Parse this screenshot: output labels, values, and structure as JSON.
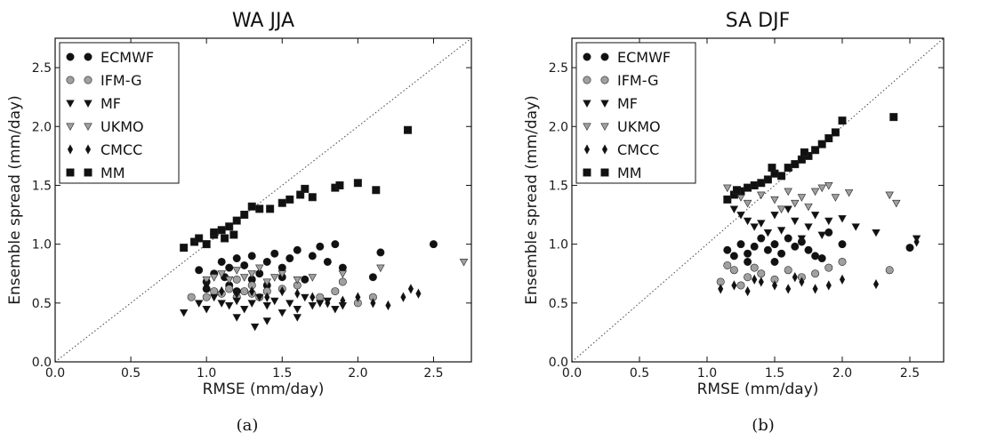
{
  "figure": {
    "captions": [
      "(a)",
      "(b)"
    ]
  },
  "chart_data": [
    {
      "type": "scatter",
      "title": "WA JJA",
      "xlabel": "RMSE (mm/day)",
      "ylabel": "Ensemble spread (mm/day)",
      "xlim": [
        0,
        2.75
      ],
      "ylim": [
        0,
        2.75
      ],
      "xticks": [
        "0.0",
        "0.5",
        "1.0",
        "1.5",
        "2.0",
        "2.5"
      ],
      "yticks": [
        "0.0",
        "0.5",
        "1.0",
        "1.5",
        "2.0",
        "2.5"
      ],
      "grid": false,
      "legend_position": "top-left",
      "reference_line": "y = x (dotted)",
      "series": [
        {
          "name": "ECMWF",
          "marker": "circle",
          "color": "#111111",
          "points": [
            [
              0.95,
              0.78
            ],
            [
              1.0,
              0.68
            ],
            [
              1.05,
              0.75
            ],
            [
              1.1,
              0.85
            ],
            [
              1.12,
              0.72
            ],
            [
              1.15,
              0.8
            ],
            [
              1.2,
              0.88
            ],
            [
              1.25,
              0.82
            ],
            [
              1.3,
              0.9
            ],
            [
              1.35,
              0.75
            ],
            [
              1.4,
              0.85
            ],
            [
              1.45,
              0.92
            ],
            [
              1.5,
              0.8
            ],
            [
              1.55,
              0.88
            ],
            [
              1.6,
              0.95
            ],
            [
              1.7,
              0.9
            ],
            [
              1.75,
              0.98
            ],
            [
              1.8,
              0.85
            ],
            [
              1.85,
              1.0
            ],
            [
              1.9,
              0.8
            ],
            [
              2.1,
              0.72
            ],
            [
              2.15,
              0.93
            ],
            [
              2.5,
              1.0
            ],
            [
              1.0,
              0.62
            ],
            [
              1.2,
              0.6
            ],
            [
              1.4,
              0.65
            ],
            [
              1.65,
              0.7
            ],
            [
              1.3,
              0.7
            ],
            [
              1.5,
              0.72
            ],
            [
              1.15,
              0.65
            ]
          ]
        },
        {
          "name": "IFM-G",
          "marker": "circle",
          "color": "#a0a0a0",
          "points": [
            [
              0.9,
              0.55
            ],
            [
              1.0,
              0.55
            ],
            [
              1.05,
              0.6
            ],
            [
              1.1,
              0.58
            ],
            [
              1.15,
              0.62
            ],
            [
              1.2,
              0.55
            ],
            [
              1.25,
              0.6
            ],
            [
              1.3,
              0.58
            ],
            [
              1.35,
              0.55
            ],
            [
              1.4,
              0.6
            ],
            [
              1.5,
              0.62
            ],
            [
              1.6,
              0.65
            ],
            [
              1.75,
              0.55
            ],
            [
              1.85,
              0.6
            ],
            [
              1.9,
              0.68
            ],
            [
              2.0,
              0.5
            ],
            [
              2.1,
              0.55
            ],
            [
              1.3,
              0.65
            ],
            [
              1.2,
              0.7
            ]
          ]
        },
        {
          "name": "MF",
          "marker": "triangle-down",
          "color": "#111111",
          "points": [
            [
              0.85,
              0.42
            ],
            [
              0.95,
              0.5
            ],
            [
              1.0,
              0.45
            ],
            [
              1.05,
              0.55
            ],
            [
              1.1,
              0.5
            ],
            [
              1.15,
              0.48
            ],
            [
              1.2,
              0.52
            ],
            [
              1.25,
              0.45
            ],
            [
              1.3,
              0.5
            ],
            [
              1.32,
              0.3
            ],
            [
              1.35,
              0.55
            ],
            [
              1.4,
              0.48
            ],
            [
              1.45,
              0.52
            ],
            [
              1.5,
              0.42
            ],
            [
              1.55,
              0.5
            ],
            [
              1.6,
              0.45
            ],
            [
              1.65,
              0.55
            ],
            [
              1.7,
              0.48
            ],
            [
              1.75,
              0.5
            ],
            [
              1.8,
              0.52
            ],
            [
              1.85,
              0.45
            ],
            [
              1.9,
              0.48
            ],
            [
              1.2,
              0.38
            ],
            [
              1.4,
              0.35
            ],
            [
              1.6,
              0.38
            ]
          ]
        },
        {
          "name": "UKMO",
          "marker": "triangle-down",
          "color": "#a0a0a0",
          "points": [
            [
              1.0,
              0.7
            ],
            [
              1.05,
              0.72
            ],
            [
              1.1,
              0.75
            ],
            [
              1.15,
              0.7
            ],
            [
              1.2,
              0.78
            ],
            [
              1.25,
              0.72
            ],
            [
              1.3,
              0.75
            ],
            [
              1.35,
              0.8
            ],
            [
              1.4,
              0.68
            ],
            [
              1.45,
              0.72
            ],
            [
              1.5,
              0.75
            ],
            [
              1.6,
              0.7
            ],
            [
              1.7,
              0.72
            ],
            [
              1.9,
              0.75
            ],
            [
              2.15,
              0.8
            ],
            [
              2.7,
              0.85
            ]
          ]
        },
        {
          "name": "CMCC",
          "marker": "diamond",
          "color": "#111111",
          "points": [
            [
              1.0,
              0.65
            ],
            [
              1.1,
              0.6
            ],
            [
              1.2,
              0.58
            ],
            [
              1.3,
              0.6
            ],
            [
              1.4,
              0.55
            ],
            [
              1.5,
              0.6
            ],
            [
              1.6,
              0.58
            ],
            [
              1.7,
              0.55
            ],
            [
              1.8,
              0.5
            ],
            [
              1.9,
              0.52
            ],
            [
              2.0,
              0.55
            ],
            [
              2.1,
              0.5
            ],
            [
              2.2,
              0.48
            ],
            [
              2.3,
              0.55
            ],
            [
              2.35,
              0.62
            ],
            [
              2.4,
              0.58
            ]
          ]
        },
        {
          "name": "MM",
          "marker": "square",
          "color": "#111111",
          "points": [
            [
              0.85,
              0.97
            ],
            [
              0.92,
              1.02
            ],
            [
              0.95,
              1.05
            ],
            [
              1.0,
              1.0
            ],
            [
              1.05,
              1.08
            ],
            [
              1.1,
              1.12
            ],
            [
              1.12,
              1.05
            ],
            [
              1.15,
              1.15
            ],
            [
              1.2,
              1.2
            ],
            [
              1.25,
              1.25
            ],
            [
              1.3,
              1.32
            ],
            [
              1.35,
              1.3
            ],
            [
              1.42,
              1.3
            ],
            [
              1.5,
              1.35
            ],
            [
              1.55,
              1.38
            ],
            [
              1.62,
              1.42
            ],
            [
              1.65,
              1.47
            ],
            [
              1.7,
              1.4
            ],
            [
              1.85,
              1.48
            ],
            [
              1.88,
              1.5
            ],
            [
              2.0,
              1.52
            ],
            [
              2.12,
              1.46
            ],
            [
              2.33,
              1.97
            ],
            [
              1.05,
              1.1
            ],
            [
              1.18,
              1.08
            ]
          ]
        }
      ]
    },
    {
      "type": "scatter",
      "title": "SA DJF",
      "xlabel": "RMSE (mm/day)",
      "ylabel": "Ensemble spread (mm/day)",
      "xlim": [
        0,
        2.75
      ],
      "ylim": [
        0,
        2.75
      ],
      "xticks": [
        "0.0",
        "0.5",
        "1.0",
        "1.5",
        "2.0",
        "2.5"
      ],
      "yticks": [
        "0.0",
        "0.5",
        "1.0",
        "1.5",
        "2.0",
        "2.5"
      ],
      "grid": false,
      "legend_position": "top-left",
      "reference_line": "y = x (dotted)",
      "series": [
        {
          "name": "ECMWF",
          "marker": "circle",
          "color": "#111111",
          "points": [
            [
              1.15,
              0.95
            ],
            [
              1.2,
              0.9
            ],
            [
              1.25,
              1.0
            ],
            [
              1.3,
              0.92
            ],
            [
              1.35,
              0.98
            ],
            [
              1.4,
              1.05
            ],
            [
              1.45,
              0.95
            ],
            [
              1.5,
              1.0
            ],
            [
              1.55,
              0.92
            ],
            [
              1.6,
              1.05
            ],
            [
              1.65,
              0.98
            ],
            [
              1.7,
              1.02
            ],
            [
              1.75,
              0.95
            ],
            [
              1.8,
              0.9
            ],
            [
              1.85,
              0.88
            ],
            [
              1.9,
              1.1
            ],
            [
              2.0,
              1.0
            ],
            [
              2.5,
              0.97
            ],
            [
              1.3,
              0.85
            ],
            [
              1.5,
              0.85
            ]
          ]
        },
        {
          "name": "IFM-G",
          "marker": "circle",
          "color": "#a0a0a0",
          "points": [
            [
              1.1,
              0.68
            ],
            [
              1.15,
              0.82
            ],
            [
              1.2,
              0.78
            ],
            [
              1.3,
              0.72
            ],
            [
              1.35,
              0.8
            ],
            [
              1.4,
              0.75
            ],
            [
              1.5,
              0.7
            ],
            [
              1.6,
              0.78
            ],
            [
              1.7,
              0.72
            ],
            [
              1.8,
              0.75
            ],
            [
              1.9,
              0.8
            ],
            [
              2.0,
              0.85
            ],
            [
              2.35,
              0.78
            ],
            [
              1.25,
              0.65
            ]
          ]
        },
        {
          "name": "MF",
          "marker": "triangle-down",
          "color": "#111111",
          "points": [
            [
              1.2,
              1.3
            ],
            [
              1.25,
              1.25
            ],
            [
              1.3,
              1.2
            ],
            [
              1.35,
              1.15
            ],
            [
              1.4,
              1.18
            ],
            [
              1.5,
              1.25
            ],
            [
              1.6,
              1.3
            ],
            [
              1.65,
              1.2
            ],
            [
              1.75,
              1.15
            ],
            [
              1.8,
              1.25
            ],
            [
              1.9,
              1.2
            ],
            [
              2.0,
              1.22
            ],
            [
              2.1,
              1.15
            ],
            [
              2.25,
              1.1
            ],
            [
              2.55,
              1.05
            ],
            [
              1.45,
              1.1
            ],
            [
              1.55,
              1.12
            ],
            [
              1.7,
              1.05
            ],
            [
              1.85,
              1.08
            ]
          ]
        },
        {
          "name": "UKMO",
          "marker": "triangle-down",
          "color": "#a0a0a0",
          "points": [
            [
              1.15,
              1.48
            ],
            [
              1.25,
              1.4
            ],
            [
              1.3,
              1.35
            ],
            [
              1.4,
              1.42
            ],
            [
              1.5,
              1.38
            ],
            [
              1.6,
              1.45
            ],
            [
              1.7,
              1.4
            ],
            [
              1.8,
              1.45
            ],
            [
              1.85,
              1.48
            ],
            [
              1.9,
              1.5
            ],
            [
              1.95,
              1.4
            ],
            [
              2.05,
              1.44
            ],
            [
              2.35,
              1.42
            ],
            [
              2.4,
              1.35
            ],
            [
              1.55,
              1.3
            ],
            [
              1.75,
              1.32
            ],
            [
              1.65,
              1.35
            ]
          ]
        },
        {
          "name": "CMCC",
          "marker": "diamond",
          "color": "#111111",
          "points": [
            [
              1.1,
              0.62
            ],
            [
              1.2,
              0.65
            ],
            [
              1.3,
              0.6
            ],
            [
              1.4,
              0.68
            ],
            [
              1.5,
              0.65
            ],
            [
              1.6,
              0.62
            ],
            [
              1.7,
              0.68
            ],
            [
              1.8,
              0.62
            ],
            [
              1.9,
              0.65
            ],
            [
              2.0,
              0.7
            ],
            [
              2.25,
              0.66
            ],
            [
              2.55,
              1.02
            ],
            [
              1.35,
              0.7
            ],
            [
              1.65,
              0.72
            ]
          ]
        },
        {
          "name": "MM",
          "marker": "square",
          "color": "#111111",
          "points": [
            [
              1.15,
              1.38
            ],
            [
              1.2,
              1.42
            ],
            [
              1.25,
              1.45
            ],
            [
              1.3,
              1.48
            ],
            [
              1.35,
              1.5
            ],
            [
              1.4,
              1.52
            ],
            [
              1.45,
              1.55
            ],
            [
              1.5,
              1.6
            ],
            [
              1.55,
              1.58
            ],
            [
              1.6,
              1.65
            ],
            [
              1.65,
              1.68
            ],
            [
              1.7,
              1.72
            ],
            [
              1.75,
              1.75
            ],
            [
              1.8,
              1.8
            ],
            [
              1.85,
              1.85
            ],
            [
              1.9,
              1.9
            ],
            [
              1.95,
              1.95
            ],
            [
              2.0,
              2.05
            ],
            [
              2.38,
              2.08
            ],
            [
              1.22,
              1.46
            ],
            [
              1.48,
              1.65
            ],
            [
              1.72,
              1.78
            ]
          ]
        }
      ]
    }
  ]
}
